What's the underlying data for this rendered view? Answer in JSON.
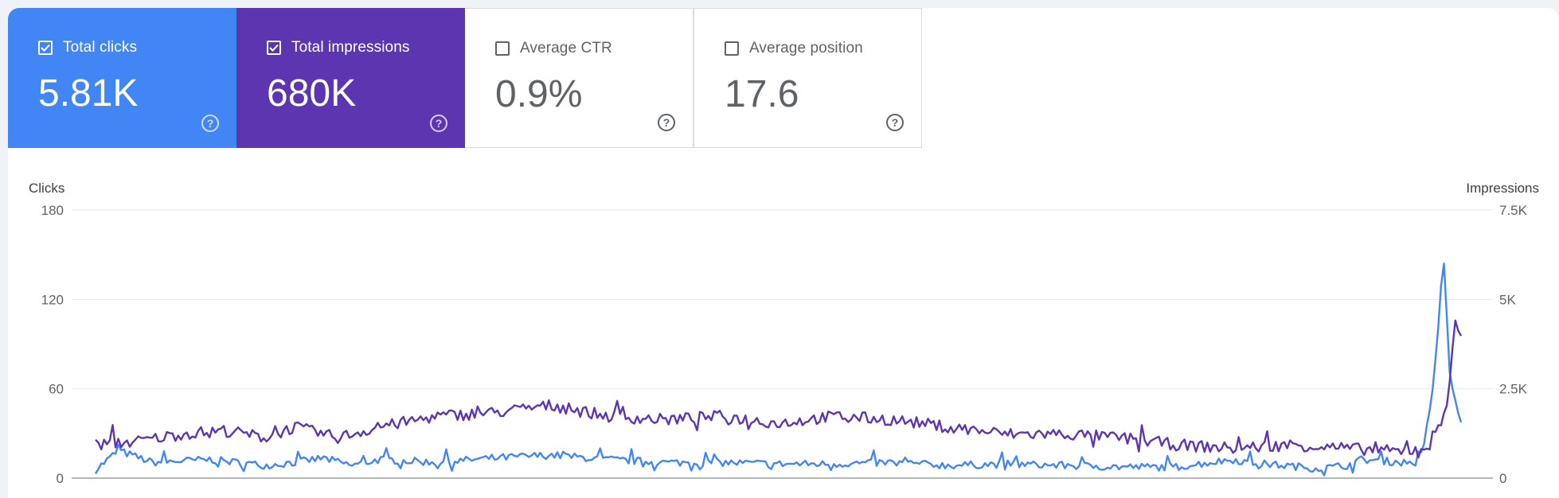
{
  "cards": [
    {
      "key": "clicks",
      "label": "Total clicks",
      "value": "5.81K",
      "checked": true,
      "color": "#4285f4"
    },
    {
      "key": "impr",
      "label": "Total impressions",
      "value": "680K",
      "checked": true,
      "color": "#5e35b1"
    },
    {
      "key": "ctr",
      "label": "Average CTR",
      "value": "0.9%",
      "checked": false
    },
    {
      "key": "pos",
      "label": "Average position",
      "value": "17.6",
      "checked": false
    }
  ],
  "help_glyph": "?",
  "chart_data": {
    "type": "line",
    "left_axis": {
      "title": "Clicks",
      "ticks": [
        0,
        60,
        120,
        180
      ],
      "tick_labels": [
        "0",
        "60",
        "120",
        "180"
      ],
      "range": [
        0,
        180
      ]
    },
    "right_axis": {
      "title": "Impressions",
      "ticks": [
        0,
        2500,
        5000,
        7500
      ],
      "tick_labels": [
        "0",
        "2.5K",
        "5K",
        "7.5K"
      ],
      "range": [
        0,
        7500
      ]
    },
    "grid": true,
    "n_points": 480,
    "series": [
      {
        "name": "Total clicks",
        "axis": "left",
        "color": "#4285f4",
        "keyframes": [
          [
            0,
            5
          ],
          [
            8,
            18
          ],
          [
            20,
            10
          ],
          [
            40,
            12
          ],
          [
            60,
            8
          ],
          [
            70,
            10
          ],
          [
            80,
            13
          ],
          [
            90,
            8
          ],
          [
            100,
            12
          ],
          [
            120,
            10
          ],
          [
            140,
            13
          ],
          [
            160,
            15
          ],
          [
            180,
            12
          ],
          [
            200,
            10
          ],
          [
            220,
            10
          ],
          [
            240,
            9
          ],
          [
            260,
            9
          ],
          [
            280,
            10
          ],
          [
            300,
            8
          ],
          [
            320,
            9
          ],
          [
            340,
            8
          ],
          [
            360,
            7
          ],
          [
            380,
            7
          ],
          [
            400,
            12
          ],
          [
            405,
            10
          ],
          [
            430,
            6
          ],
          [
            440,
            8
          ],
          [
            445,
            12
          ],
          [
            460,
            10
          ],
          [
            465,
            10
          ],
          [
            467,
            20
          ],
          [
            470,
            60
          ],
          [
            472,
            100
          ],
          [
            474,
            145
          ],
          [
            476,
            70
          ],
          [
            478,
            50
          ],
          [
            480,
            40
          ]
        ]
      },
      {
        "name": "Total impressions",
        "axis": "right",
        "color": "#5e35b1",
        "keyframes": [
          [
            0,
            900
          ],
          [
            15,
            1000
          ],
          [
            30,
            1200
          ],
          [
            45,
            1300
          ],
          [
            60,
            1100
          ],
          [
            70,
            1400
          ],
          [
            85,
            1100
          ],
          [
            100,
            1400
          ],
          [
            120,
            1700
          ],
          [
            140,
            1800
          ],
          [
            160,
            2000
          ],
          [
            180,
            1700
          ],
          [
            200,
            1600
          ],
          [
            220,
            1700
          ],
          [
            240,
            1500
          ],
          [
            260,
            1700
          ],
          [
            280,
            1600
          ],
          [
            300,
            1400
          ],
          [
            320,
            1200
          ],
          [
            340,
            1200
          ],
          [
            360,
            1100
          ],
          [
            380,
            900
          ],
          [
            400,
            800
          ],
          [
            420,
            900
          ],
          [
            440,
            800
          ],
          [
            460,
            700
          ],
          [
            470,
            900
          ],
          [
            475,
            2000
          ],
          [
            478,
            4500
          ],
          [
            480,
            3800
          ]
        ]
      }
    ],
    "peaks": {
      "clicks": [
        [
          474,
          145
        ],
        [
          477,
          165
        ],
        [
          479,
          75
        ]
      ],
      "impressions": [
        [
          477,
          3700
        ],
        [
          479,
          1500
        ]
      ]
    }
  }
}
